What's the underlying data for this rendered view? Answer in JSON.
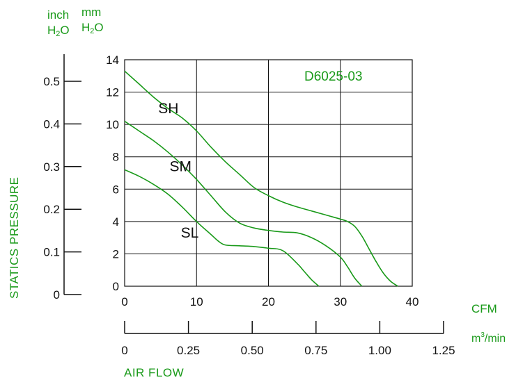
{
  "units": {
    "inch_top": "inch",
    "inch_bottom_h": "H",
    "inch_bottom_sub": "2",
    "inch_bottom_o": "O",
    "mm_top": "mm",
    "mm_bottom_h": "H",
    "mm_bottom_sub": "2",
    "mm_bottom_o": "O",
    "cfm": "CFM",
    "m3_base": "m",
    "m3_sup": "3",
    "m3_tail": "/min"
  },
  "labels": {
    "y_axis": "STATICS PRESSURE",
    "x_axis": "AIR FLOW"
  },
  "colors": {
    "accent": "#1a9a1a",
    "axis": "#111111"
  },
  "chart_data": {
    "type": "line",
    "title": "D6025-03",
    "xlabel": "AIR FLOW",
    "ylabel": "STATICS PRESSURE",
    "xlim": [
      0,
      40
    ],
    "ylim": [
      0,
      14
    ],
    "grid": true,
    "x_ticks": [
      "0",
      "10",
      "20",
      "30",
      "40"
    ],
    "y_ticks": [
      "0",
      "2",
      "4",
      "6",
      "8",
      "10",
      "12",
      "14"
    ],
    "inch_ticks": [
      "0",
      "0.1",
      "0.2",
      "0.3",
      "0.4",
      "0.5"
    ],
    "inch_values": [
      0,
      0.1,
      0.2,
      0.3,
      0.4,
      0.5
    ],
    "m3_ticks": [
      "0",
      "0.25",
      "0.50",
      "0.75",
      "1.00",
      "1.25"
    ],
    "m3_values": [
      0,
      0.25,
      0.5,
      0.75,
      1.0,
      1.25
    ],
    "series": [
      {
        "name": "SH",
        "x": [
          0,
          2,
          4,
          6,
          8,
          10,
          12,
          14,
          16,
          18,
          20,
          22,
          24,
          26,
          28,
          30,
          31,
          32,
          33,
          34,
          35,
          36,
          37,
          38
        ],
        "y": [
          13.3,
          12.5,
          11.7,
          11.0,
          10.4,
          9.6,
          8.6,
          7.7,
          6.9,
          6.1,
          5.6,
          5.2,
          4.9,
          4.65,
          4.4,
          4.15,
          4.0,
          3.7,
          3.1,
          2.3,
          1.5,
          0.8,
          0.3,
          0
        ]
      },
      {
        "name": "SM",
        "x": [
          0,
          2,
          4,
          6,
          8,
          10,
          12,
          14,
          16,
          18,
          20,
          22,
          24,
          26,
          28,
          30,
          31,
          32,
          33
        ],
        "y": [
          10.2,
          9.6,
          9.0,
          8.3,
          7.5,
          6.6,
          5.6,
          4.6,
          3.9,
          3.6,
          3.45,
          3.35,
          3.3,
          3.0,
          2.5,
          1.8,
          1.2,
          0.5,
          0
        ]
      },
      {
        "name": "SL",
        "x": [
          0,
          2,
          4,
          6,
          8,
          10,
          12,
          13,
          14,
          16,
          18,
          20,
          22,
          24,
          25,
          26,
          27
        ],
        "y": [
          7.2,
          6.8,
          6.3,
          5.7,
          4.9,
          4.0,
          3.2,
          2.8,
          2.55,
          2.5,
          2.45,
          2.35,
          2.2,
          1.4,
          0.9,
          0.4,
          0
        ]
      }
    ]
  }
}
